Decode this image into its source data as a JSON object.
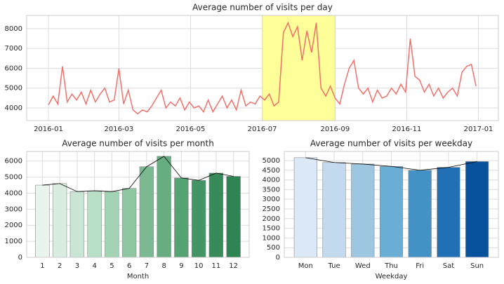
{
  "chart_data": [
    {
      "type": "line",
      "title": "Average number of visits per day",
      "color": "#f2716c",
      "grid": true,
      "highlight": [
        182,
        244
      ],
      "highlight_color": "#ffff99",
      "xlim": [
        -18.5,
        383
      ],
      "ylim": [
        3360,
        8670
      ],
      "xticks": [
        {
          "value": 0,
          "label": "2016-01"
        },
        {
          "value": 60,
          "label": "2016-03"
        },
        {
          "value": 121,
          "label": "2016-05"
        },
        {
          "value": 182,
          "label": "2016-07"
        },
        {
          "value": 244,
          "label": "2016-09"
        },
        {
          "value": 305,
          "label": "2016-11"
        },
        {
          "value": 366,
          "label": "2017-01"
        }
      ],
      "yticks": [
        4000,
        5000,
        6000,
        7000,
        8000
      ],
      "x": [
        0,
        4,
        8,
        12,
        16,
        20,
        24,
        28,
        32,
        36,
        40,
        44,
        48,
        52,
        56,
        60,
        64,
        68,
        72,
        76,
        80,
        84,
        88,
        92,
        96,
        100,
        104,
        108,
        112,
        116,
        120,
        124,
        128,
        132,
        136,
        140,
        144,
        148,
        152,
        156,
        160,
        164,
        168,
        172,
        176,
        180,
        184,
        188,
        192,
        196,
        200,
        204,
        208,
        212,
        216,
        220,
        224,
        228,
        232,
        236,
        240,
        244,
        248,
        252,
        256,
        260,
        264,
        268,
        272,
        276,
        280,
        284,
        288,
        292,
        296,
        300,
        304,
        308,
        312,
        316,
        320,
        324,
        328,
        332,
        336,
        340,
        344,
        348,
        352,
        356,
        360,
        364
      ],
      "values": [
        4150,
        4600,
        4200,
        6100,
        4300,
        4700,
        4400,
        4800,
        4200,
        4900,
        4300,
        4700,
        5000,
        4300,
        4400,
        6000,
        4200,
        4900,
        3900,
        3700,
        3900,
        3800,
        4100,
        4500,
        4900,
        4000,
        4300,
        4100,
        4500,
        3900,
        4300,
        4000,
        4100,
        3800,
        4400,
        3800,
        4200,
        4600,
        4000,
        4400,
        3900,
        4900,
        4100,
        4300,
        4200,
        4600,
        4400,
        4700,
        4100,
        4300,
        7800,
        8300,
        7600,
        8100,
        6400,
        7900,
        6800,
        8300,
        5000,
        4600,
        5100,
        4500,
        4200,
        5200,
        6000,
        6400,
        5000,
        4700,
        5000,
        4300,
        4900,
        4500,
        4600,
        5000,
        4700,
        5200,
        4800,
        7500,
        5600,
        5400,
        4800,
        5200,
        4600,
        5000,
        4500,
        4800,
        5000,
        4600,
        5800,
        6100,
        6200,
        5100
      ]
    },
    {
      "type": "bar",
      "title": "Average number of visits per month",
      "xlabel": "Month",
      "grid": true,
      "line_overlay": true,
      "line_color": "#000000",
      "categories": [
        "1",
        "2",
        "3",
        "4",
        "5",
        "6",
        "7",
        "8",
        "9",
        "10",
        "11",
        "12"
      ],
      "values": [
        4500,
        4600,
        4100,
        4150,
        4100,
        4300,
        5650,
        6300,
        4950,
        4800,
        5250,
        5050
      ],
      "colors": [
        "#e8f4ec",
        "#d8ede0",
        "#c9e6d4",
        "#b8dfc7",
        "#a3d3b5",
        "#8fc7a3",
        "#7ab991",
        "#68ad82",
        "#55a273",
        "#449565",
        "#378b5a",
        "#2d8552"
      ],
      "ylim": [
        0,
        6600
      ],
      "yticks": [
        0,
        1000,
        2000,
        3000,
        4000,
        5000,
        6000
      ]
    },
    {
      "type": "bar",
      "title": "Average number of visits per weekday",
      "xlabel": "Weekday",
      "grid": true,
      "line_overlay": true,
      "line_color": "#000000",
      "categories": [
        "Mon",
        "Tue",
        "Wed",
        "Thu",
        "Fri",
        "Sat",
        "Sun"
      ],
      "values": [
        5150,
        4900,
        4820,
        4700,
        4500,
        4650,
        4950
      ],
      "colors": [
        "#dbe8f5",
        "#c3d9ee",
        "#9dc6e1",
        "#6aaed6",
        "#4292c6",
        "#2170b5",
        "#08519c"
      ],
      "ylim": [
        0,
        5470
      ],
      "yticks": [
        0,
        500,
        1000,
        1500,
        2000,
        2500,
        3000,
        3500,
        4000,
        4500,
        5000
      ]
    }
  ]
}
